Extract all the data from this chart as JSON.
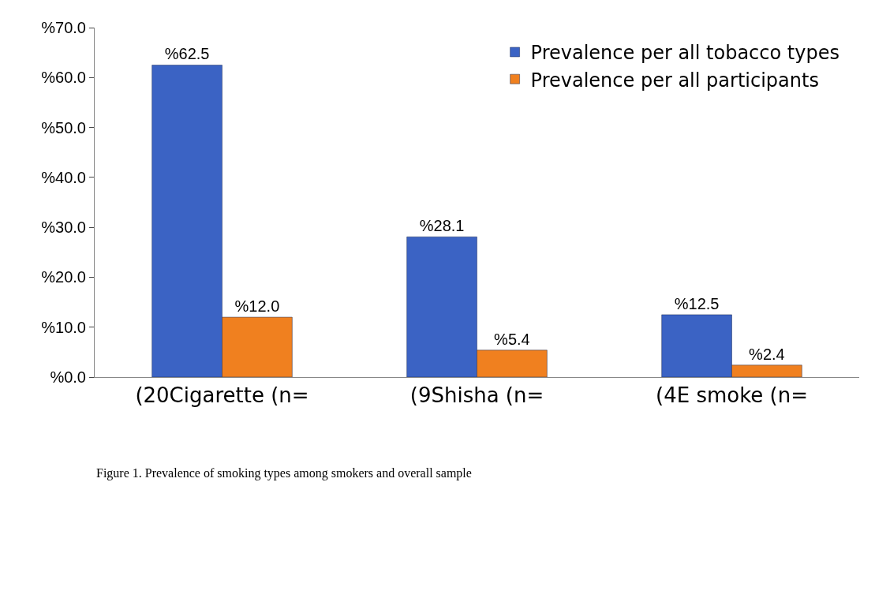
{
  "chart_data": {
    "type": "bar",
    "categories": [
      "(20Cigarette (n=",
      "(9Shisha (n=",
      "(4E smoke (n="
    ],
    "series": [
      {
        "name": "Prevalence per all tobacco types",
        "color": "#3b63c4",
        "values": [
          62.5,
          28.1,
          12.5
        ],
        "value_labels": [
          "%62.5",
          "%28.1",
          "%12.5"
        ]
      },
      {
        "name": "Prevalence per all participants",
        "color": "#f0801f",
        "values": [
          12.0,
          5.4,
          2.4
        ],
        "value_labels": [
          "%12.0",
          "%5.4",
          "%2.4"
        ]
      }
    ],
    "ylim": [
      0,
      70
    ],
    "yticks": [
      {
        "value": 0,
        "label": "%0.0"
      },
      {
        "value": 10,
        "label": "%10.0"
      },
      {
        "value": 20,
        "label": "%20.0"
      },
      {
        "value": 30,
        "label": "%30.0"
      },
      {
        "value": 40,
        "label": "%40.0"
      },
      {
        "value": 50,
        "label": "%50.0"
      },
      {
        "value": 60,
        "label": "%60.0"
      },
      {
        "value": 70,
        "label": "%70.0"
      }
    ],
    "grid": false,
    "legend": "top right",
    "annotations": [
      "Figure 1. Prevalence of smoking types among smokers and overall sample"
    ]
  }
}
